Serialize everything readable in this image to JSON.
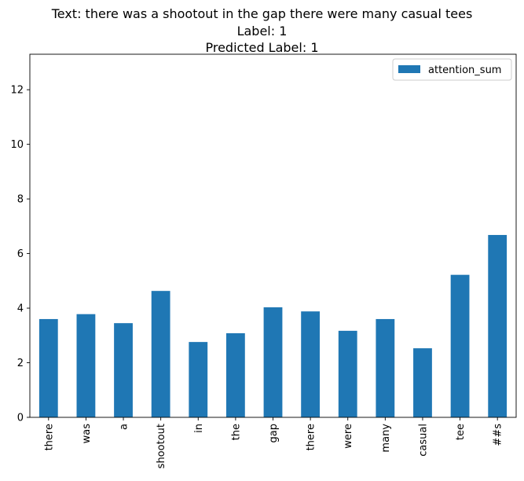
{
  "titles": {
    "line1": "Text: there was a shootout in the gap there were many casual tees",
    "line2": "Label: 1",
    "line3": "Predicted Label: 1"
  },
  "chart_data": {
    "type": "bar",
    "categories": [
      "there",
      "was",
      "a",
      "shootout",
      "in",
      "the",
      "gap",
      "there",
      "were",
      "many",
      "casual",
      "tee",
      "##s"
    ],
    "series": [
      {
        "name": "attention_sum",
        "values": [
          3.6,
          3.78,
          3.45,
          4.63,
          2.76,
          3.08,
          4.03,
          3.88,
          3.17,
          3.6,
          2.53,
          5.22,
          6.68
        ],
        "color": "#1f77b4"
      }
    ],
    "ylim": [
      0,
      13.3
    ],
    "yticks": [
      0,
      2,
      4,
      6,
      8,
      10,
      12
    ],
    "xlabel": "",
    "ylabel": "",
    "legend": "top-right",
    "grid": false
  }
}
